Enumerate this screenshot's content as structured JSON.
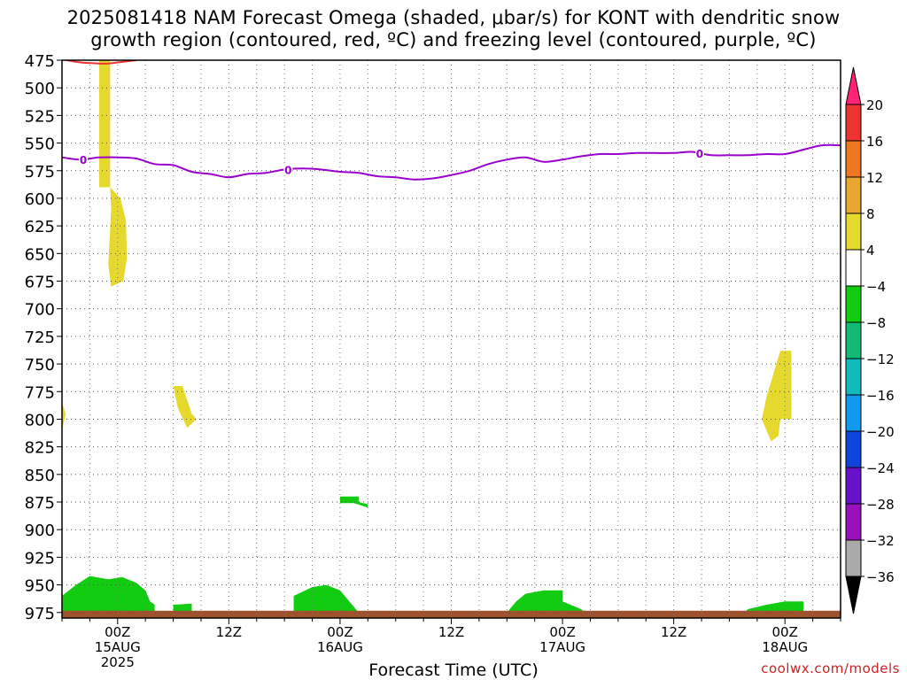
{
  "title": {
    "line1": "2025081418 NAM Forecast Omega (shaded, μbar/s) for KONT with dendritic snow",
    "line2": "growth region (contoured, red, ºC) and freezing level (contoured, purple, ºC)"
  },
  "credit": "coolwx.com/models",
  "colors": {
    "credit": "#cc2222",
    "freezing_contour": "#9900cc",
    "dgz_contour": "#ee3333",
    "ground": "#a0522d",
    "pos_omega": "#e5d92e",
    "neg_omega": "#11cc11"
  },
  "chart_data": {
    "type": "time-height cross section",
    "xlabel": "Forecast Time (UTC)",
    "ylabel": "",
    "x_ticks": [
      {
        "hours": 6,
        "label": "00Z",
        "sub1": "15AUG",
        "sub2": "2025"
      },
      {
        "hours": 18,
        "label": "12Z",
        "sub1": "",
        "sub2": ""
      },
      {
        "hours": 30,
        "label": "00Z",
        "sub1": "16AUG",
        "sub2": ""
      },
      {
        "hours": 42,
        "label": "12Z",
        "sub1": "",
        "sub2": ""
      },
      {
        "hours": 54,
        "label": "00Z",
        "sub1": "17AUG",
        "sub2": ""
      },
      {
        "hours": 66,
        "label": "12Z",
        "sub1": "",
        "sub2": ""
      },
      {
        "hours": 78,
        "label": "00Z",
        "sub1": "18AUG",
        "sub2": ""
      }
    ],
    "x_range_hours": [
      0,
      84
    ],
    "y_range_mb": [
      475,
      980
    ],
    "y_ticks": [
      475,
      500,
      525,
      550,
      575,
      600,
      625,
      650,
      675,
      700,
      725,
      750,
      775,
      800,
      825,
      850,
      875,
      900,
      925,
      950,
      975
    ],
    "grid": true,
    "colorbar": {
      "units": "μbar/s",
      "labels": [
        "20",
        "16",
        "12",
        "8",
        "4",
        "-4",
        "-8",
        "-12",
        "-16",
        "-20",
        "-24",
        "-28",
        "-32",
        "-36"
      ],
      "colors": [
        "#ff2277",
        "#ee3333",
        "#ee7722",
        "#e6a832",
        "#e5d92e",
        "#ffffff",
        "#11cc11",
        "#11bb77",
        "#11bbbb",
        "#1199ee",
        "#1144dd",
        "#6611cc",
        "#9911bb",
        "#aaaaaa",
        "#000000"
      ]
    },
    "freezing_level": {
      "contour_label": "0",
      "label_at_hours": [
        2.3,
        24.4,
        68.8
      ],
      "points": [
        [
          0,
          563
        ],
        [
          2,
          565
        ],
        [
          4,
          563
        ],
        [
          6,
          563
        ],
        [
          8,
          564
        ],
        [
          10,
          569
        ],
        [
          12,
          570
        ],
        [
          14,
          576
        ],
        [
          16,
          578
        ],
        [
          18,
          581
        ],
        [
          20,
          578
        ],
        [
          22,
          577
        ],
        [
          24,
          574
        ],
        [
          26,
          573
        ],
        [
          28,
          574
        ],
        [
          30,
          576
        ],
        [
          32,
          577
        ],
        [
          34,
          580
        ],
        [
          36,
          581
        ],
        [
          38,
          583
        ],
        [
          40,
          582
        ],
        [
          42,
          579
        ],
        [
          44,
          575
        ],
        [
          46,
          569
        ],
        [
          48,
          565
        ],
        [
          50,
          563
        ],
        [
          52,
          567
        ],
        [
          54,
          565
        ],
        [
          56,
          562
        ],
        [
          58,
          560
        ],
        [
          60,
          560
        ],
        [
          62,
          559
        ],
        [
          64,
          559
        ],
        [
          66,
          559
        ],
        [
          68,
          558
        ],
        [
          70,
          561
        ],
        [
          72,
          561
        ],
        [
          74,
          561
        ],
        [
          76,
          560
        ],
        [
          78,
          560
        ],
        [
          80,
          556
        ],
        [
          82,
          552
        ],
        [
          84,
          552
        ]
      ]
    },
    "dgz_contour": {
      "points": [
        [
          0.5,
          475
        ],
        [
          2,
          477
        ],
        [
          4,
          478
        ],
        [
          5,
          478
        ],
        [
          6,
          477
        ],
        [
          8,
          475
        ]
      ]
    },
    "positive_regions": [
      {
        "points": [
          [
            4,
            475
          ],
          [
            5.2,
            475
          ],
          [
            5.2,
            590
          ],
          [
            4,
            590
          ]
        ]
      },
      {
        "points": [
          [
            5.2,
            590
          ],
          [
            6.3,
            600
          ],
          [
            6.9,
            620
          ],
          [
            7.0,
            655
          ],
          [
            6.6,
            675
          ],
          [
            5.3,
            680
          ],
          [
            5.0,
            660
          ],
          [
            5.3,
            610
          ]
        ]
      },
      {
        "points": [
          [
            12,
            770
          ],
          [
            13,
            770
          ],
          [
            14,
            795
          ],
          [
            14.5,
            800
          ],
          [
            13.5,
            808
          ],
          [
            12.5,
            790
          ]
        ]
      },
      {
        "points": [
          [
            0,
            785
          ],
          [
            0.4,
            795
          ],
          [
            0,
            810
          ]
        ]
      },
      {
        "points": [
          [
            77.5,
            738
          ],
          [
            78.7,
            738
          ],
          [
            78.7,
            800
          ],
          [
            77.5,
            800
          ],
          [
            77.3,
            815
          ],
          [
            76.5,
            820
          ],
          [
            75.5,
            800
          ],
          [
            76,
            780
          ]
        ]
      }
    ],
    "negative_regions": [
      {
        "points": [
          [
            0,
            980
          ],
          [
            0,
            960
          ],
          [
            1.5,
            950
          ],
          [
            3,
            942
          ],
          [
            5,
            945
          ],
          [
            6.5,
            943
          ],
          [
            8,
            948
          ],
          [
            9,
            955
          ],
          [
            9.5,
            965
          ],
          [
            10,
            968
          ],
          [
            10,
            980
          ]
        ]
      },
      {
        "points": [
          [
            12,
            968
          ],
          [
            14,
            967
          ],
          [
            14,
            980
          ],
          [
            12,
            980
          ]
        ]
      },
      {
        "points": [
          [
            25,
            980
          ],
          [
            25,
            960
          ],
          [
            27,
            952
          ],
          [
            28.5,
            950
          ],
          [
            30,
            955
          ],
          [
            31,
            965
          ],
          [
            32,
            975
          ],
          [
            32,
            980
          ]
        ]
      },
      {
        "points": [
          [
            30,
            870
          ],
          [
            32,
            870
          ],
          [
            32,
            875
          ],
          [
            33,
            877
          ],
          [
            33,
            880
          ],
          [
            31.5,
            876
          ],
          [
            30,
            876
          ]
        ]
      },
      {
        "points": [
          [
            47,
            980
          ],
          [
            48,
            975
          ],
          [
            49,
            965
          ],
          [
            50,
            958
          ],
          [
            52,
            955
          ],
          [
            54,
            955
          ],
          [
            54,
            965
          ],
          [
            56,
            972
          ],
          [
            57,
            978
          ],
          [
            57,
            980
          ]
        ]
      },
      {
        "points": [
          [
            73,
            980
          ],
          [
            74,
            972
          ],
          [
            76,
            968
          ],
          [
            78,
            965
          ],
          [
            80,
            965
          ],
          [
            80,
            980
          ]
        ]
      }
    ]
  }
}
